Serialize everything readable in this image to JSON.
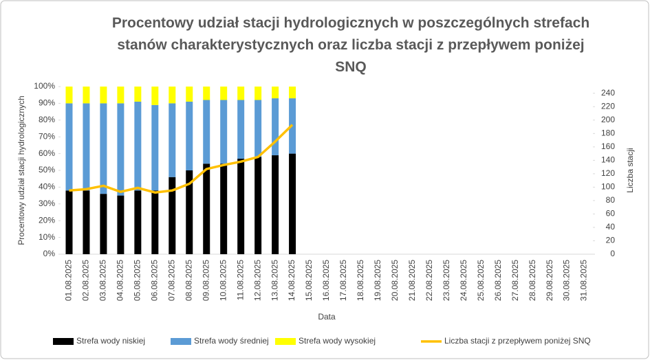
{
  "chart_data": {
    "type": "bar",
    "stacked": true,
    "title": "Procentowy udział stacji hydrologicznych w poszczególnych strefach stanów charakterystycznych oraz liczba stacji z przepływem poniżej SNQ",
    "x_label": "Data",
    "y_label": "Procentowy udział stacji hydrologicznych",
    "y2_label": "Liczba stacji",
    "categories": [
      "01.08.2025",
      "02.08.2025",
      "03.08.2025",
      "04.08.2025",
      "05.08.2025",
      "06.08.2025",
      "07.08.2025",
      "08.08.2025",
      "09.08.2025",
      "10.08.2025",
      "11.08.2025",
      "12.08.2025",
      "13.08.2025",
      "14.08.2025",
      "15.08.2025",
      "16.08.2025",
      "17.08.2025",
      "18.08.2025",
      "19.08.2025",
      "20.08.2025",
      "21.08.2025",
      "22.08.2025",
      "23.08.2025",
      "24.08.2025",
      "25.08.2025",
      "26.08.2025",
      "27.08.2025",
      "28.08.2025",
      "29.08.2025",
      "30.08.2025",
      "31.08.2025"
    ],
    "series": [
      {
        "name": "Strefa wody niskiej",
        "color": "#000000",
        "values": [
          38,
          38,
          36,
          35,
          38,
          38,
          46,
          50,
          54,
          54,
          57,
          58,
          59,
          60,
          null,
          null,
          null,
          null,
          null,
          null,
          null,
          null,
          null,
          null,
          null,
          null,
          null,
          null,
          null,
          null,
          null
        ]
      },
      {
        "name": "Strefa wody średniej",
        "color": "#5b9bd5",
        "values": [
          52,
          52,
          54,
          55,
          53,
          51,
          44,
          41,
          38,
          38,
          35,
          34,
          34,
          33,
          null,
          null,
          null,
          null,
          null,
          null,
          null,
          null,
          null,
          null,
          null,
          null,
          null,
          null,
          null,
          null,
          null
        ]
      },
      {
        "name": "Strefa wody wysokiej",
        "color": "#ffff00",
        "values": [
          10,
          10,
          10,
          10,
          9,
          11,
          10,
          9,
          8,
          8,
          8,
          8,
          7,
          7,
          null,
          null,
          null,
          null,
          null,
          null,
          null,
          null,
          null,
          null,
          null,
          null,
          null,
          null,
          null,
          null,
          null
        ]
      },
      {
        "name": "Liczba stacji z przepływem poniżej SNQ",
        "color": "#ffc000",
        "type": "line",
        "axis": "y2",
        "values": [
          95,
          97,
          102,
          93,
          99,
          92,
          95,
          105,
          127,
          133,
          138,
          145,
          168,
          193,
          null,
          null,
          null,
          null,
          null,
          null,
          null,
          null,
          null,
          null,
          null,
          null,
          null,
          null,
          null,
          null,
          null
        ]
      }
    ],
    "ylim": [
      0,
      100
    ],
    "yticks": [
      {
        "value": 0,
        "label": "0%"
      },
      {
        "value": 10,
        "label": "10%"
      },
      {
        "value": 20,
        "label": "20%"
      },
      {
        "value": 30,
        "label": "30%"
      },
      {
        "value": 40,
        "label": "40%"
      },
      {
        "value": 50,
        "label": "50%"
      },
      {
        "value": 60,
        "label": "60%"
      },
      {
        "value": 70,
        "label": "70%"
      },
      {
        "value": 80,
        "label": "80%"
      },
      {
        "value": 90,
        "label": "90%"
      },
      {
        "value": 100,
        "label": "100%"
      }
    ],
    "y2lim": [
      0,
      250
    ],
    "y2ticks": [
      0,
      20,
      40,
      60,
      80,
      100,
      120,
      140,
      160,
      180,
      200,
      220,
      240
    ],
    "legend": "bottom"
  }
}
